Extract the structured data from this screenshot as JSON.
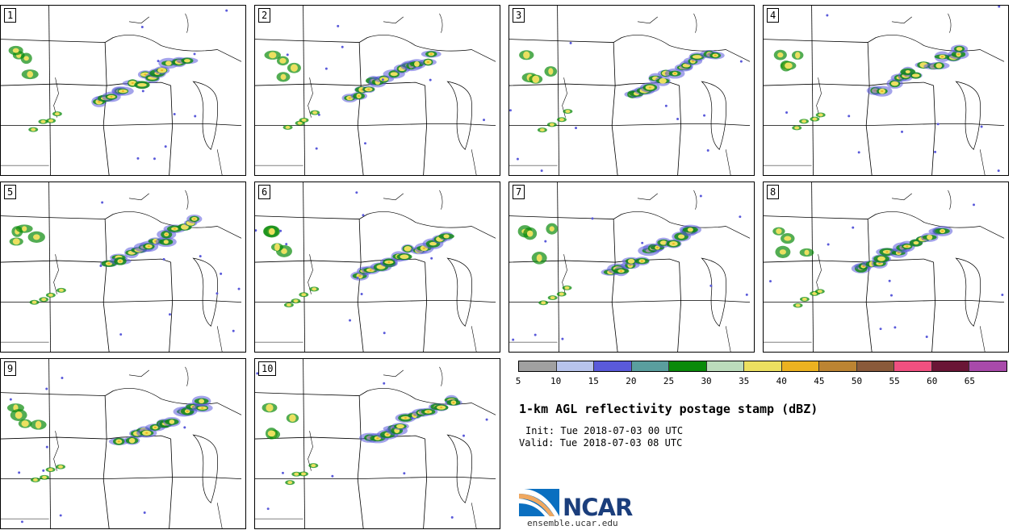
{
  "panels": [
    {
      "label": "1"
    },
    {
      "label": "2"
    },
    {
      "label": "3"
    },
    {
      "label": "4"
    },
    {
      "label": "5"
    },
    {
      "label": "6"
    },
    {
      "label": "7"
    },
    {
      "label": "8"
    },
    {
      "label": "9"
    },
    {
      "label": "10"
    }
  ],
  "colorbar": {
    "colors": [
      "#a0a0a0",
      "#b8c4ec",
      "#5a5ada",
      "#5a9e9e",
      "#0a8a0a",
      "#bcdcbc",
      "#ece060",
      "#ecb220",
      "#bc8432",
      "#8a5a3a",
      "#f05080",
      "#6a1636",
      "#a84aaa"
    ],
    "ticks": [
      "5",
      "10",
      "15",
      "20",
      "25",
      "30",
      "35",
      "40",
      "45",
      "50",
      "55",
      "60",
      "65"
    ]
  },
  "title": "1-km AGL reflectivity postage stamp (dBZ)",
  "init": "Init: Tue 2018-07-03 00 UTC",
  "valid": "Valid: Tue 2018-07-03 08 UTC",
  "logo": {
    "text": "NCAR",
    "site": "ensemble.ucar.edu"
  }
}
